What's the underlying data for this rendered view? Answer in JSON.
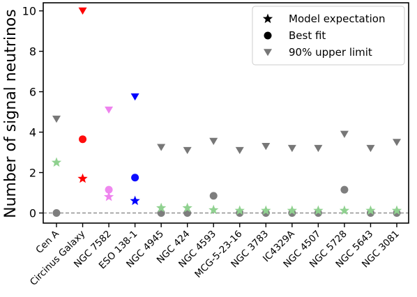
{
  "chart_data": {
    "type": "scatter",
    "ylabel": "Number of signal neutrinos",
    "ylim": [
      -0.5,
      10.4
    ],
    "yticks": [
      0,
      2,
      4,
      6,
      8,
      10
    ],
    "grid": false,
    "reference_line": {
      "y": 0,
      "style": "dashed",
      "color": "#808080"
    },
    "legend": {
      "position": "top-right",
      "entries": [
        {
          "label": "Model expectation",
          "marker": "star"
        },
        {
          "label": "Best fit",
          "marker": "circle"
        },
        {
          "label": "90% upper limit",
          "marker": "triangle-down"
        }
      ]
    },
    "categories": [
      "Cen A",
      "Circinus Galaxy",
      "NGC 7582",
      "ESO 138-1",
      "NGC 4945",
      "NGC 424",
      "NGC 4593",
      "MCG-5-23-16",
      "NGC 3783",
      "IC4329A",
      "NGC 4507",
      "NGC 5728",
      "NGC 5643",
      "NGC 3081"
    ],
    "colors": [
      "#8fd18f",
      "#ff0000",
      "#ee82ee",
      "#0000ff",
      "#8fd18f",
      "#8fd18f",
      "#8fd18f",
      "#8fd18f",
      "#8fd18f",
      "#8fd18f",
      "#8fd18f",
      "#8fd18f",
      "#8fd18f",
      "#8fd18f"
    ],
    "upper_limit_colors": [
      "#777777",
      "#ff0000",
      "#ee82ee",
      "#0000ff",
      "#777777",
      "#777777",
      "#777777",
      "#777777",
      "#777777",
      "#777777",
      "#777777",
      "#777777",
      "#777777",
      "#777777"
    ],
    "best_fit_colors": [
      "#777777",
      "#ff0000",
      "#ee82ee",
      "#0000ff",
      "#777777",
      "#777777",
      "#777777",
      "#777777",
      "#777777",
      "#777777",
      "#777777",
      "#777777",
      "#777777",
      "#777777"
    ],
    "series": [
      {
        "name": "Model expectation",
        "marker": "star",
        "values": [
          2.5,
          1.7,
          0.8,
          0.6,
          0.25,
          0.25,
          0.15,
          0.12,
          0.12,
          0.12,
          0.12,
          0.12,
          0.12,
          0.12
        ]
      },
      {
        "name": "Best fit",
        "marker": "circle",
        "values": [
          0,
          3.65,
          1.15,
          1.75,
          0,
          0,
          0.85,
          0,
          0,
          0,
          0,
          1.15,
          0,
          0
        ]
      },
      {
        "name": "90% upper limit",
        "marker": "triangle-down",
        "values": [
          4.65,
          10.0,
          5.1,
          5.75,
          3.25,
          3.1,
          3.55,
          3.1,
          3.3,
          3.2,
          3.2,
          3.9,
          3.2,
          3.5
        ]
      }
    ]
  }
}
